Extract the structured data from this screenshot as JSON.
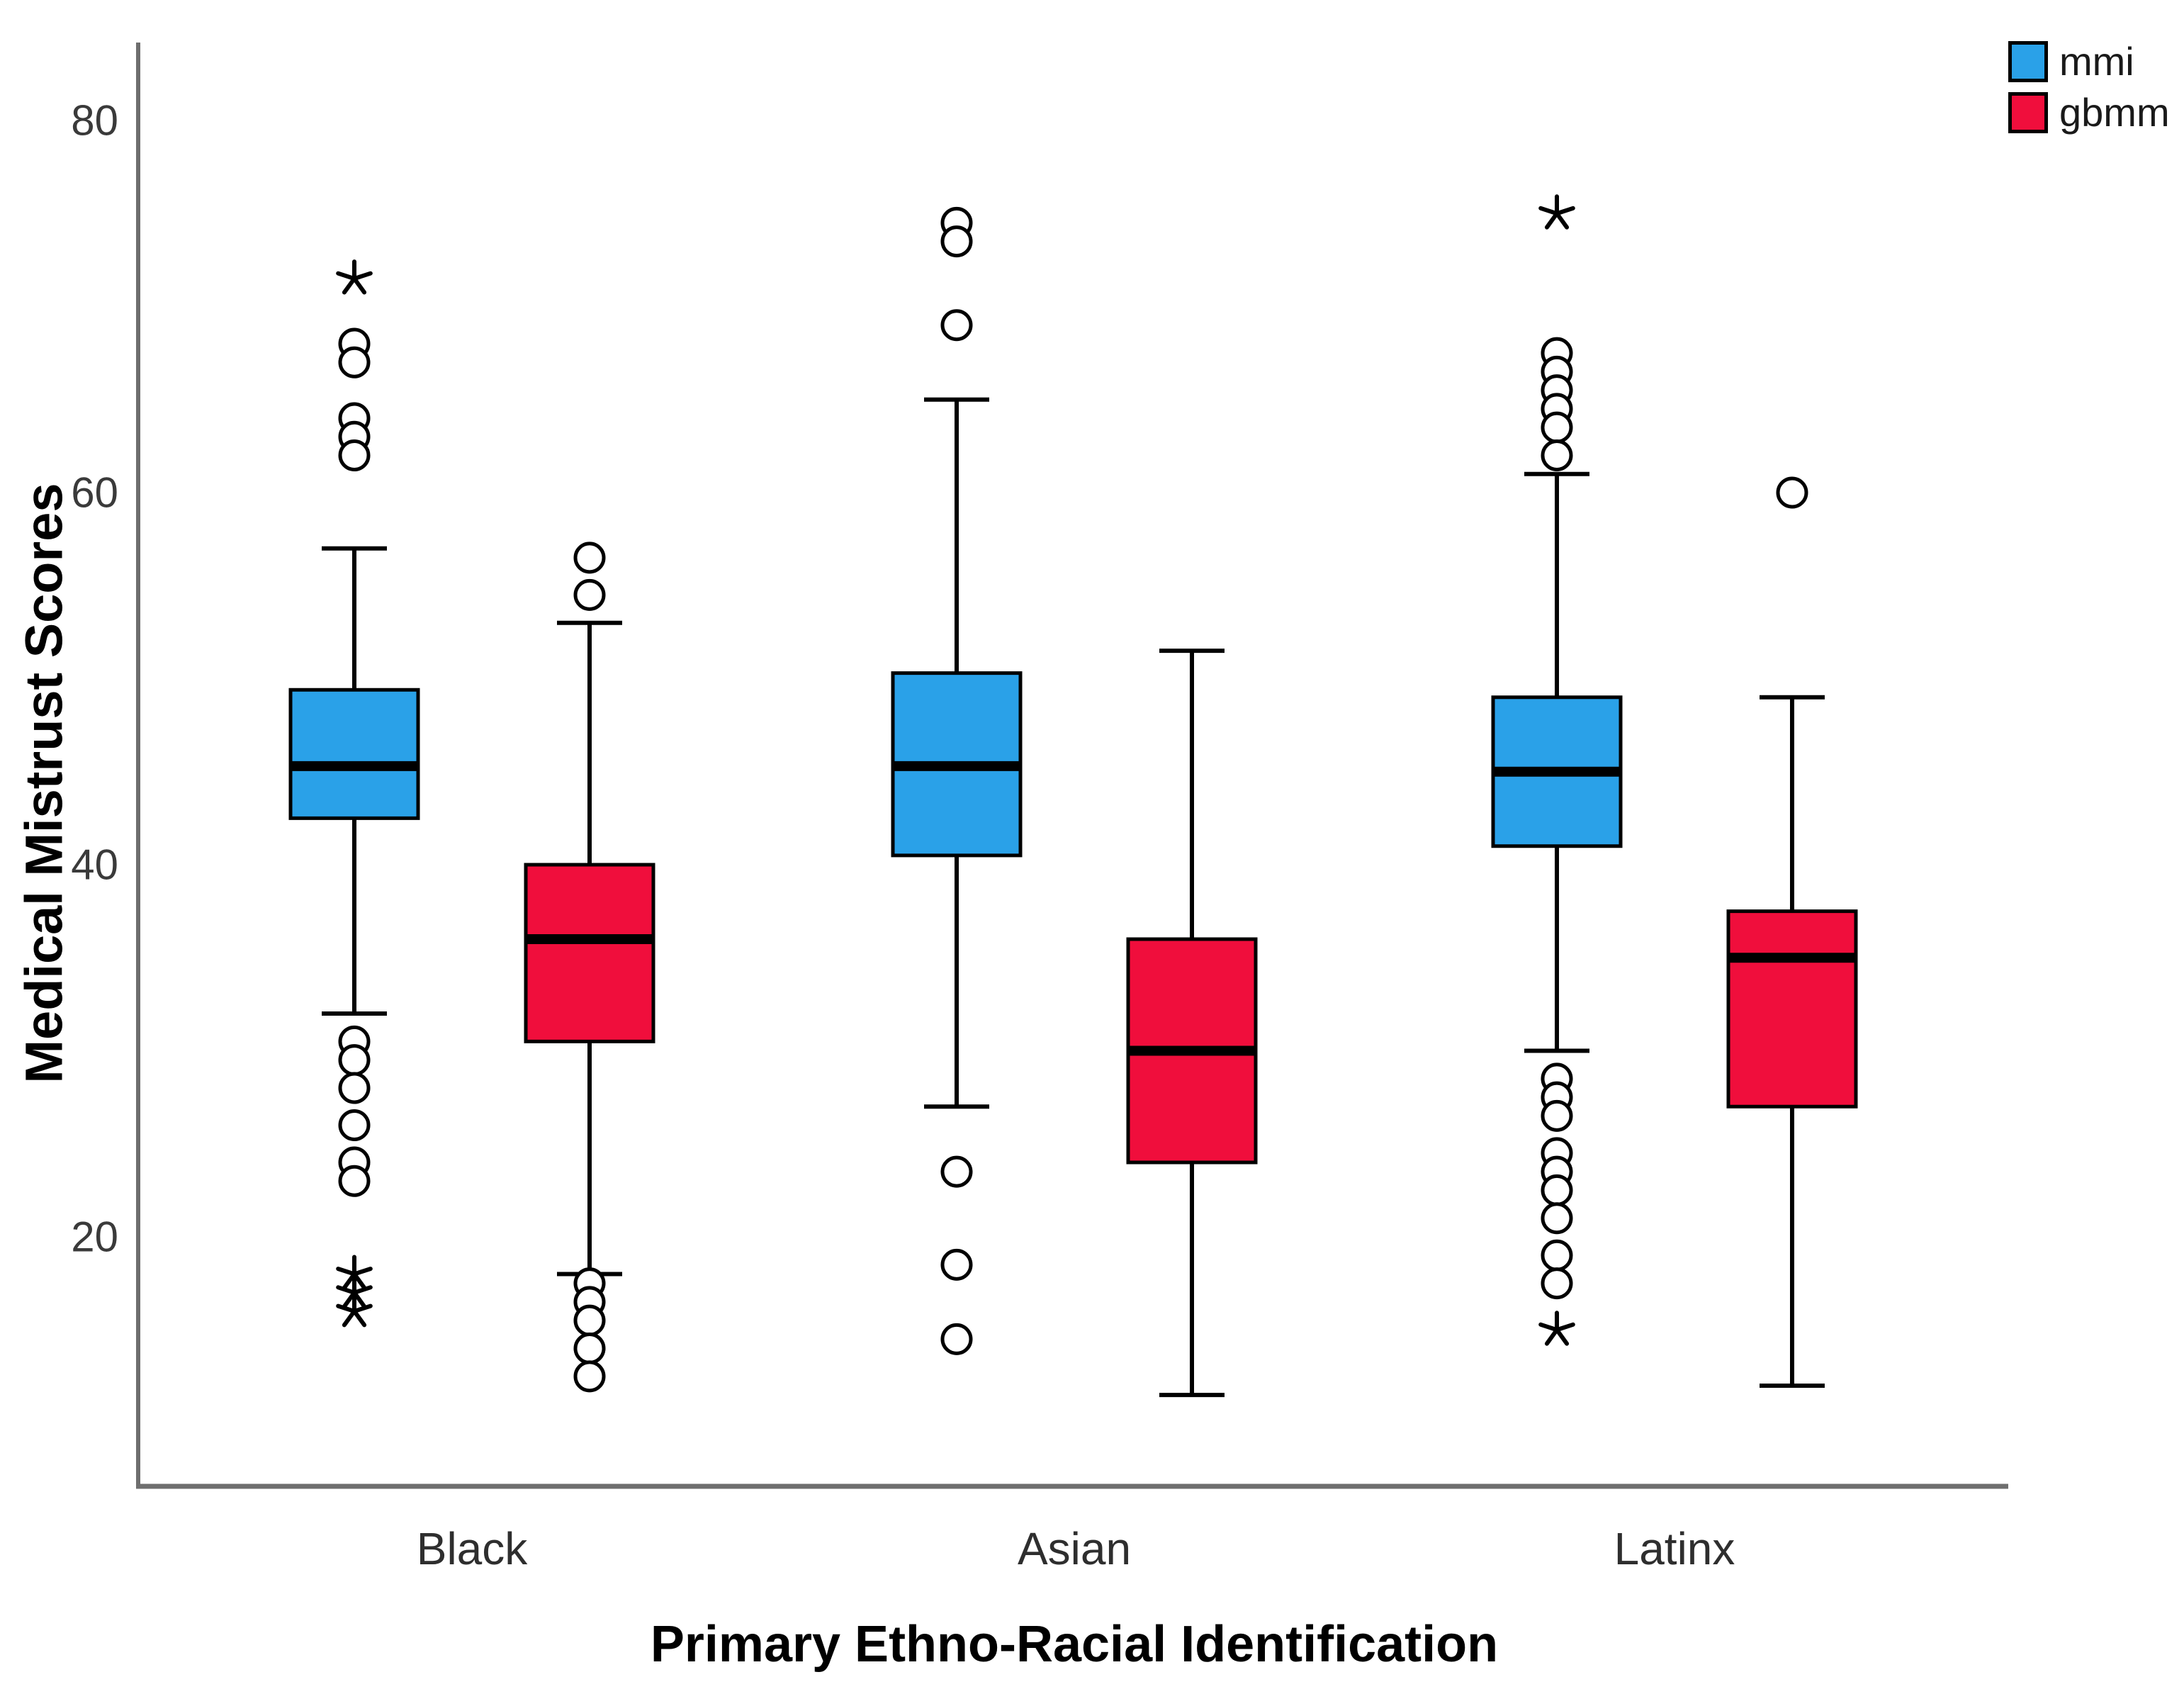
{
  "chart_data": {
    "type": "boxplot",
    "title": "",
    "xlabel": "Primary Ethno-Racial Identification",
    "ylabel": "Medical Mistrust Scores",
    "categories": [
      "Black",
      "Asian",
      "Latinx"
    ],
    "y_ticks": [
      80,
      60,
      40,
      20
    ],
    "ylim": [
      7,
      84
    ],
    "grid": false,
    "legend_position": "top-right",
    "marker_legend": {
      "circle": "mild outlier",
      "star": "extreme outlier"
    },
    "series": [
      {
        "name": "mmi",
        "color": "#2aa1e8",
        "boxes": [
          {
            "category": "Black",
            "whisker_low": 32,
            "q1": 42.5,
            "median": 45.3,
            "q3": 49.4,
            "whisker_high": 57,
            "outliers_mild": [
              68,
              67,
              64,
              63,
              62,
              30.5,
              29.5,
              28,
              26,
              24,
              23
            ],
            "outliers_extreme": [
              71.5,
              18,
              17,
              16
            ]
          },
          {
            "category": "Asian",
            "whisker_low": 27,
            "q1": 40.5,
            "median": 45.3,
            "q3": 50.3,
            "whisker_high": 65,
            "outliers_mild": [
              74.5,
              73.5,
              69,
              23.5,
              18.5,
              14.5
            ],
            "outliers_extreme": []
          },
          {
            "category": "Latinx",
            "whisker_low": 30,
            "q1": 41,
            "median": 45,
            "q3": 49,
            "whisker_high": 61,
            "outliers_mild": [
              67.5,
              66.5,
              65.5,
              64.5,
              63.5,
              62,
              28.5,
              27.5,
              26.5,
              24.5,
              23.5,
              22.5,
              21,
              19,
              17.5
            ],
            "outliers_extreme": [
              75,
              15
            ]
          }
        ]
      },
      {
        "name": "gbmm",
        "color": "#f00e3c",
        "boxes": [
          {
            "category": "Black",
            "whisker_low": 18,
            "q1": 30.5,
            "median": 36,
            "q3": 40,
            "whisker_high": 53,
            "outliers_mild": [
              56.5,
              54.5,
              17.5,
              16.5,
              15.5,
              14,
              12.5
            ],
            "outliers_extreme": []
          },
          {
            "category": "Asian",
            "whisker_low": 11.5,
            "q1": 24,
            "median": 30,
            "q3": 36,
            "whisker_high": 51.5,
            "outliers_mild": [],
            "outliers_extreme": []
          },
          {
            "category": "Latinx",
            "whisker_low": 12,
            "q1": 27,
            "median": 35,
            "q3": 37.5,
            "whisker_high": 49,
            "outliers_mild": [
              60
            ],
            "outliers_extreme": []
          }
        ]
      }
    ]
  }
}
